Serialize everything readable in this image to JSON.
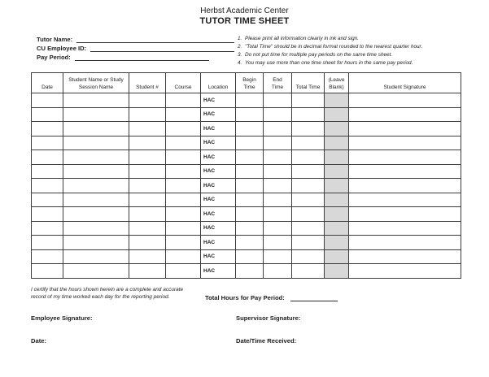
{
  "header": {
    "org_name": "Herbst Academic Center",
    "form_title": "TUTOR TIME SHEET"
  },
  "fields": {
    "tutor_name_label": "Tutor Name:",
    "employee_id_label": "CU Employee ID:",
    "pay_period_label": "Pay Period:"
  },
  "instructions": [
    {
      "num": "1.",
      "text": "Please print all information clearly in ink and sign."
    },
    {
      "num": "2.",
      "text": "\"Total Time\" should be in decimal format rounded to the nearest quarter hour."
    },
    {
      "num": "3.",
      "text": "Do not put time for multiple pay periods on the same time sheet."
    },
    {
      "num": "4.",
      "text": "You may use more than one time sheet for hours in the same pay period."
    }
  ],
  "table": {
    "columns": [
      "Date",
      "Student Name or  Study\nSession Name",
      "Student #",
      "Course",
      "Location",
      "Begin\nTime",
      "End\nTime",
      "Total Time",
      "(Leave\nBlank)",
      "Student Signature"
    ],
    "column_keys": [
      "date",
      "student_name",
      "student_num",
      "course",
      "location",
      "begin",
      "end",
      "total",
      "leave_blank",
      "signature"
    ],
    "rows": [
      {
        "date": "",
        "student_name": "",
        "student_num": "",
        "course": "",
        "location": "HAC",
        "begin": "",
        "end": "",
        "total": "",
        "leave_blank": "",
        "signature": ""
      },
      {
        "date": "",
        "student_name": "",
        "student_num": "",
        "course": "",
        "location": "HAC",
        "begin": "",
        "end": "",
        "total": "",
        "leave_blank": "",
        "signature": ""
      },
      {
        "date": "",
        "student_name": "",
        "student_num": "",
        "course": "",
        "location": "HAC",
        "begin": "",
        "end": "",
        "total": "",
        "leave_blank": "",
        "signature": ""
      },
      {
        "date": "",
        "student_name": "",
        "student_num": "",
        "course": "",
        "location": "HAC",
        "begin": "",
        "end": "",
        "total": "",
        "leave_blank": "",
        "signature": ""
      },
      {
        "date": "",
        "student_name": "",
        "student_num": "",
        "course": "",
        "location": "HAC",
        "begin": "",
        "end": "",
        "total": "",
        "leave_blank": "",
        "signature": ""
      },
      {
        "date": "",
        "student_name": "",
        "student_num": "",
        "course": "",
        "location": "HAC",
        "begin": "",
        "end": "",
        "total": "",
        "leave_blank": "",
        "signature": ""
      },
      {
        "date": "",
        "student_name": "",
        "student_num": "",
        "course": "",
        "location": "HAC",
        "begin": "",
        "end": "",
        "total": "",
        "leave_blank": "",
        "signature": ""
      },
      {
        "date": "",
        "student_name": "",
        "student_num": "",
        "course": "",
        "location": "HAC",
        "begin": "",
        "end": "",
        "total": "",
        "leave_blank": "",
        "signature": ""
      },
      {
        "date": "",
        "student_name": "",
        "student_num": "",
        "course": "",
        "location": "HAC",
        "begin": "",
        "end": "",
        "total": "",
        "leave_blank": "",
        "signature": ""
      },
      {
        "date": "",
        "student_name": "",
        "student_num": "",
        "course": "",
        "location": "HAC",
        "begin": "",
        "end": "",
        "total": "",
        "leave_blank": "",
        "signature": ""
      },
      {
        "date": "",
        "student_name": "",
        "student_num": "",
        "course": "",
        "location": "HAC",
        "begin": "",
        "end": "",
        "total": "",
        "leave_blank": "",
        "signature": ""
      },
      {
        "date": "",
        "student_name": "",
        "student_num": "",
        "course": "",
        "location": "HAC",
        "begin": "",
        "end": "",
        "total": "",
        "leave_blank": "",
        "signature": ""
      },
      {
        "date": "",
        "student_name": "",
        "student_num": "",
        "course": "",
        "location": "HAC",
        "begin": "",
        "end": "",
        "total": "",
        "leave_blank": "",
        "signature": ""
      }
    ]
  },
  "footer": {
    "certification": "I certify that the hours shown herein are a complete and accurate record of my time worked each day for the reporting period.",
    "total_hours_label": "Total Hours for Pay Period:",
    "employee_signature_label": "Employee Signature:",
    "supervisor_signature_label": "Supervisor Signature:",
    "date_label": "Date:",
    "datetime_received_label": "Date/Time Received:"
  },
  "colors": {
    "leave_blank_fill": "#d8d8d8",
    "grid_border": "#3e3e3e",
    "text": "#1c1c1c"
  }
}
